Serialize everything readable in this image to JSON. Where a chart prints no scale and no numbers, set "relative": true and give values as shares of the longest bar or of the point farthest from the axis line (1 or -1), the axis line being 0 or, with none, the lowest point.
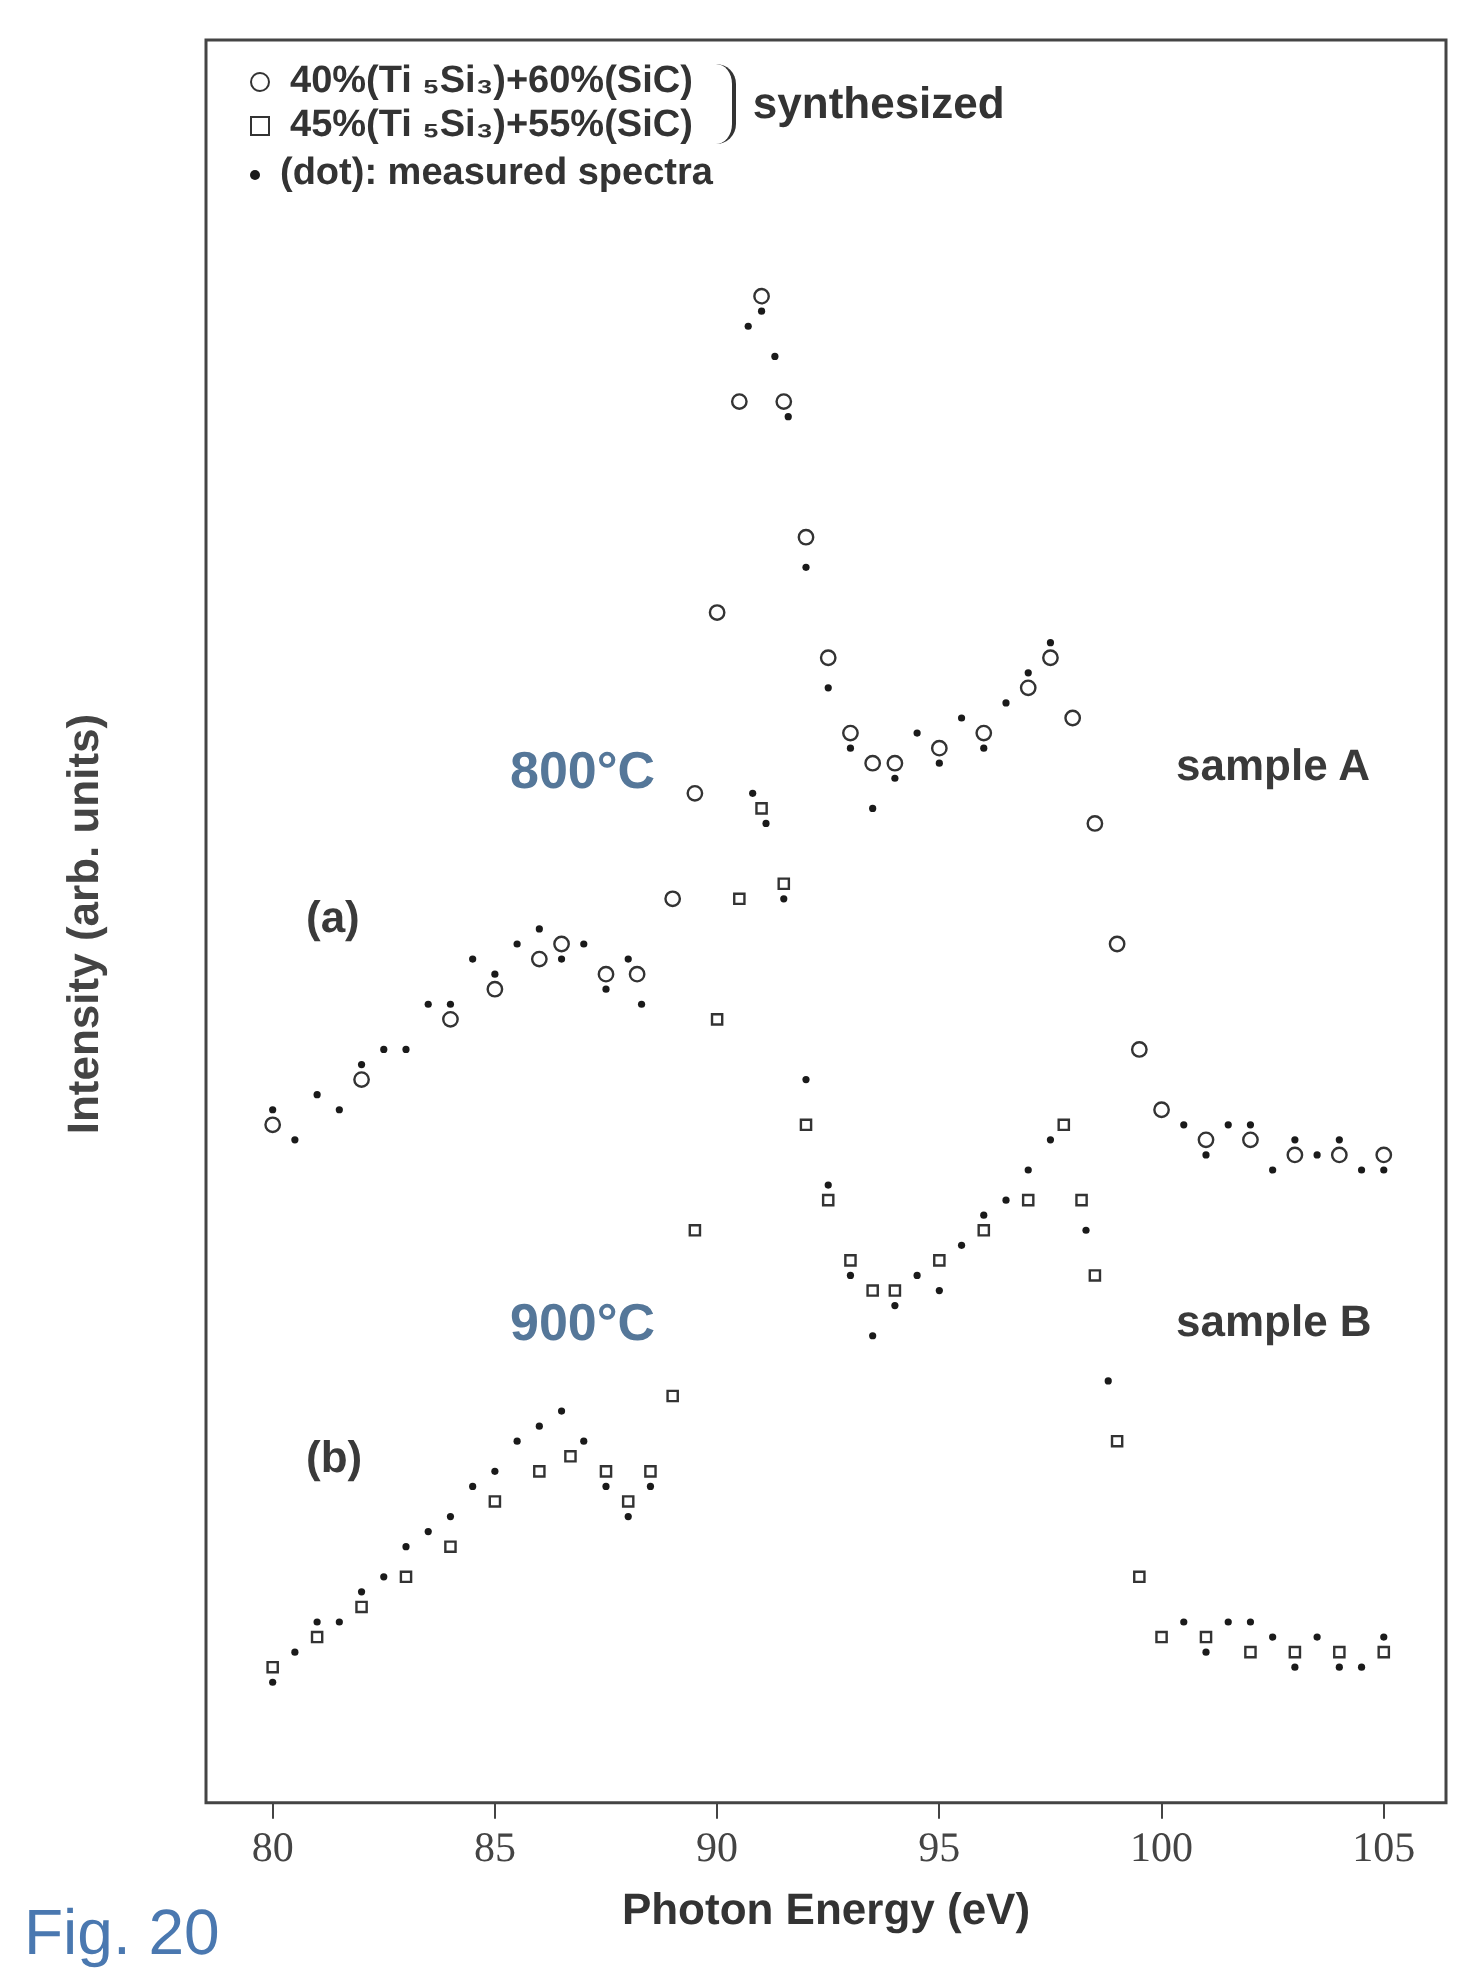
{
  "chart_data": {
    "type": "scatter",
    "relative": true,
    "xlabel": "Photon Energy (eV)",
    "ylabel": "Intensity (arb. units)",
    "legend": "top",
    "legend_title": "synthesized",
    "xlim": [
      78.5,
      106.4
    ],
    "xticks": [
      80,
      85,
      90,
      95,
      100,
      105
    ],
    "grid": false,
    "series": [
      {
        "name": "40%(Ti ₅Si₃)+60%(SiC)",
        "color": "#333333",
        "marker": "circle",
        "x": [
          80,
          82,
          84,
          85,
          86,
          86.5,
          87.5,
          88.2,
          89,
          89.5,
          90,
          90.5,
          91,
          91.5,
          92,
          92.5,
          93,
          93.5,
          94,
          95,
          96,
          97,
          97.5,
          98,
          98.5,
          99,
          99.5,
          100,
          101,
          102,
          103,
          104,
          105
        ],
        "values": [
          0.45,
          0.48,
          0.52,
          0.54,
          0.56,
          0.57,
          0.55,
          0.55,
          0.6,
          0.67,
          0.79,
          0.93,
          1.0,
          0.93,
          0.84,
          0.76,
          0.71,
          0.69,
          0.69,
          0.7,
          0.71,
          0.74,
          0.76,
          0.72,
          0.65,
          0.57,
          0.5,
          0.46,
          0.44,
          0.44,
          0.43,
          0.43,
          0.43
        ]
      },
      {
        "name": "45%(Ti ₅Si₃)+55%(SiC)",
        "color": "#333333",
        "marker": "square",
        "x": [
          80,
          81,
          82,
          83,
          84,
          85,
          86,
          86.7,
          87.5,
          88,
          88.5,
          89,
          89.5,
          90,
          90.5,
          91,
          91.5,
          92,
          92.5,
          93,
          93.5,
          94,
          95,
          96,
          97,
          97.8,
          98.2,
          98.5,
          99,
          99.5,
          100,
          101,
          102,
          103,
          104,
          105
        ],
        "values": [
          0.09,
          0.11,
          0.13,
          0.15,
          0.17,
          0.2,
          0.22,
          0.23,
          0.22,
          0.2,
          0.22,
          0.27,
          0.38,
          0.52,
          0.6,
          0.66,
          0.61,
          0.45,
          0.4,
          0.36,
          0.34,
          0.34,
          0.36,
          0.38,
          0.4,
          0.45,
          0.4,
          0.35,
          0.24,
          0.15,
          0.11,
          0.11,
          0.1,
          0.1,
          0.1,
          0.1
        ]
      },
      {
        "name": "(dot): measured spectra",
        "color": "#1a1a1a",
        "x": [
          80,
          80.5,
          81,
          81.5,
          82,
          82.5,
          83,
          83.5,
          84,
          84.5,
          85,
          85.5,
          86,
          86.5,
          87,
          87.5,
          88,
          88.3,
          90.7,
          91,
          91.3,
          91.6,
          92,
          92.5,
          93,
          93.5,
          94,
          94.5,
          95,
          95.5,
          96,
          96.5,
          97,
          97.5,
          100.5,
          101,
          101.5,
          102,
          102.5,
          103,
          103.5,
          104,
          104.5,
          105,
          80,
          80.5,
          81,
          81.5,
          82,
          82.5,
          83,
          83.5,
          84,
          84.5,
          85,
          85.5,
          86,
          86.5,
          87,
          87.5,
          88,
          88.5,
          90.8,
          91.1,
          91.5,
          92,
          92.5,
          93,
          93.5,
          94,
          94.5,
          95,
          95.5,
          96,
          96.5,
          97,
          97.5,
          98.3,
          98.8,
          100.5,
          101,
          101.5,
          102,
          102.5,
          103,
          103.5,
          104,
          104.5,
          105
        ],
        "values": [
          0.46,
          0.44,
          0.47,
          0.46,
          0.49,
          0.5,
          0.5,
          0.53,
          0.53,
          0.56,
          0.55,
          0.57,
          0.58,
          0.56,
          0.57,
          0.54,
          0.56,
          0.53,
          0.98,
          0.99,
          0.96,
          0.92,
          0.82,
          0.74,
          0.7,
          0.66,
          0.68,
          0.71,
          0.69,
          0.72,
          0.7,
          0.73,
          0.75,
          0.77,
          0.45,
          0.43,
          0.45,
          0.45,
          0.42,
          0.44,
          0.43,
          0.44,
          0.42,
          0.42,
          0.08,
          0.1,
          0.12,
          0.12,
          0.14,
          0.15,
          0.17,
          0.18,
          0.19,
          0.21,
          0.22,
          0.24,
          0.25,
          0.26,
          0.24,
          0.21,
          0.19,
          0.21,
          0.67,
          0.65,
          0.6,
          0.48,
          0.41,
          0.35,
          0.31,
          0.33,
          0.35,
          0.34,
          0.37,
          0.39,
          0.4,
          0.42,
          0.44,
          0.38,
          0.28,
          0.12,
          0.1,
          0.12,
          0.12,
          0.11,
          0.09,
          0.11,
          0.09,
          0.09,
          0.11
        ]
      }
    ],
    "annotations": [
      "800°C",
      "(a)",
      "sample A",
      "900°C",
      "(b)",
      "sample B",
      "Fig. 20"
    ]
  }
}
